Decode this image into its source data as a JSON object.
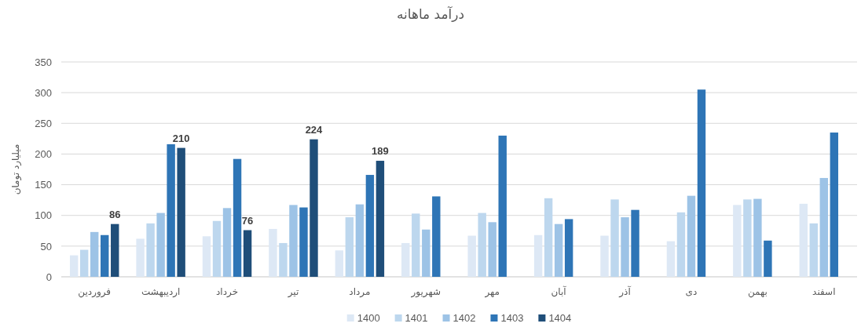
{
  "chart_data": {
    "type": "bar",
    "title": "درآمد ماهانه",
    "ylabel": "میلیارد تومان",
    "categories": [
      "فروردین",
      "اردیبهشت",
      "خرداد",
      "تیر",
      "مرداد",
      "شهریور",
      "مهر",
      "آبان",
      "آذر",
      "دی",
      "بهمن",
      "اسفند"
    ],
    "series": [
      {
        "name": "1400",
        "color": "#dde8f5",
        "values": [
          35,
          62,
          66,
          78,
          43,
          55,
          67,
          68,
          67,
          58,
          117,
          119
        ]
      },
      {
        "name": "1401",
        "color": "#bdd7ee",
        "values": [
          44,
          87,
          91,
          55,
          97,
          103,
          104,
          128,
          126,
          105,
          126,
          87
        ]
      },
      {
        "name": "1402",
        "color": "#9dc3e6",
        "values": [
          73,
          104,
          112,
          117,
          118,
          77,
          89,
          86,
          97,
          132,
          127,
          161
        ]
      },
      {
        "name": "1403",
        "color": "#2e75b6",
        "values": [
          68,
          216,
          192,
          113,
          166,
          131,
          230,
          94,
          109,
          305,
          59,
          235
        ]
      },
      {
        "name": "1404",
        "color": "#1f4e79",
        "values": [
          86,
          210,
          76,
          224,
          189,
          null,
          null,
          null,
          null,
          null,
          null,
          null
        ],
        "value_labels": [
          "86",
          "210",
          "76",
          "224",
          "189",
          null,
          null,
          null,
          null,
          null,
          null,
          null
        ]
      }
    ],
    "ylim": [
      0,
      350
    ],
    "yticks": [
      0,
      50,
      100,
      150,
      200,
      250,
      300,
      350
    ],
    "grid": "y",
    "legend": "bottom"
  }
}
